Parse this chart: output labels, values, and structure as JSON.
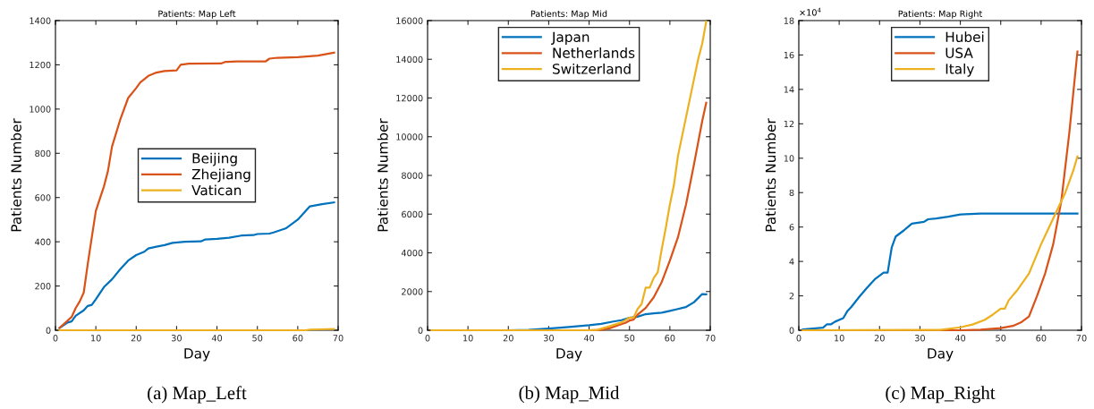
{
  "chart_data": [
    {
      "type": "line",
      "title": "Patients: Map Left",
      "xlabel": "Day",
      "ylabel": "Patients Number",
      "annotations": [
        "(a) Map_Left"
      ],
      "xlim": [
        0,
        70
      ],
      "xticks": [
        0,
        10,
        20,
        30,
        40,
        50,
        60,
        70
      ],
      "ylim": [
        0,
        1400
      ],
      "yticks": [
        0,
        200,
        400,
        600,
        800,
        1000,
        1200,
        1400
      ],
      "legend": "center",
      "grid": false,
      "series": [
        {
          "name": "Beijing",
          "color": "#0072bd",
          "x": [
            1,
            3,
            4,
            5,
            7,
            8,
            9,
            10,
            12,
            14,
            16,
            18,
            20,
            22,
            23,
            25,
            27,
            29,
            32,
            36,
            37,
            40,
            43,
            46,
            49,
            50,
            53,
            54,
            57,
            60,
            63,
            66,
            69
          ],
          "values": [
            10,
            35,
            40,
            65,
            90,
            110,
            115,
            140,
            195,
            230,
            275,
            315,
            340,
            355,
            370,
            378,
            385,
            395,
            400,
            402,
            410,
            413,
            418,
            428,
            430,
            435,
            437,
            442,
            460,
            500,
            560,
            570,
            578
          ]
        },
        {
          "name": "Zhejiang",
          "color": "#d95319",
          "x": [
            1,
            4,
            5,
            6,
            7,
            8,
            9,
            10,
            12,
            13,
            14,
            16,
            18,
            20,
            21,
            23,
            25,
            27,
            30,
            31,
            33,
            41,
            42,
            45,
            52,
            53,
            55,
            60,
            65,
            69
          ],
          "values": [
            10,
            60,
            100,
            130,
            170,
            300,
            420,
            540,
            650,
            720,
            830,
            950,
            1050,
            1095,
            1120,
            1150,
            1165,
            1172,
            1175,
            1200,
            1205,
            1206,
            1213,
            1215,
            1215,
            1228,
            1232,
            1235,
            1242,
            1255
          ]
        },
        {
          "name": "Vatican",
          "color": "#edb120",
          "x": [
            1,
            45,
            62,
            63,
            69
          ],
          "values": [
            0,
            0,
            0,
            3,
            6
          ]
        }
      ]
    },
    {
      "type": "line",
      "title": "Patients: Map Mid",
      "xlabel": "Day",
      "ylabel": "Patients Number",
      "annotations": [
        "(b) Map_Mid"
      ],
      "xlim": [
        0,
        70
      ],
      "xticks": [
        0,
        10,
        20,
        30,
        40,
        50,
        60,
        70
      ],
      "ylim": [
        0,
        16000
      ],
      "yticks": [
        0,
        2000,
        4000,
        6000,
        8000,
        10000,
        12000,
        14000,
        16000
      ],
      "legend": "upper center",
      "grid": false,
      "series": [
        {
          "name": "Japan",
          "color": "#0072bd",
          "x": [
            1,
            20,
            25,
            30,
            35,
            40,
            43,
            46,
            48,
            50,
            52,
            54,
            56,
            58,
            60,
            62,
            64,
            66,
            68,
            69
          ],
          "values": [
            0,
            0,
            20,
            90,
            170,
            260,
            330,
            450,
            520,
            640,
            700,
            830,
            870,
            910,
            1000,
            1100,
            1200,
            1450,
            1870,
            1860
          ]
        },
        {
          "name": "Netherlands",
          "color": "#d95319",
          "x": [
            1,
            40,
            43,
            45,
            47,
            49,
            50,
            51,
            52,
            54,
            56,
            58,
            60,
            62,
            64,
            66,
            68,
            69
          ],
          "values": [
            0,
            0,
            20,
            100,
            250,
            380,
            500,
            550,
            800,
            1150,
            1700,
            2500,
            3600,
            4800,
            6500,
            8600,
            10800,
            11750
          ]
        },
        {
          "name": "Switzerland",
          "color": "#edb120",
          "x": [
            1,
            40,
            42,
            45,
            48,
            50,
            51,
            52,
            53,
            54,
            55,
            56,
            57,
            58,
            59,
            60,
            61,
            62,
            64,
            66,
            67,
            68,
            69
          ],
          "values": [
            0,
            0,
            20,
            200,
            400,
            650,
            650,
            1100,
            1350,
            2200,
            2200,
            2700,
            3000,
            4200,
            5300,
            6500,
            7500,
            9000,
            11000,
            13000,
            14000,
            14800,
            15950
          ]
        }
      ]
    },
    {
      "type": "line",
      "title": "Patients: Map Right",
      "xlabel": "Day",
      "ylabel": "Patients Number",
      "annotations": [
        "(c) Map_Right",
        "×10$^{4}$"
      ],
      "xlim": [
        0,
        70
      ],
      "xticks": [
        0,
        10,
        20,
        30,
        40,
        50,
        60,
        70
      ],
      "ylim": [
        0,
        18
      ],
      "yticks": [
        0,
        2,
        4,
        6,
        8,
        10,
        12,
        14,
        16,
        18
      ],
      "legend": "upper center",
      "grid": false,
      "series": [
        {
          "name": "Hubei",
          "color": "#0072bd",
          "x": [
            1,
            6,
            7,
            8,
            9,
            11,
            12,
            13,
            15,
            17,
            19,
            21,
            22,
            23,
            24,
            26,
            28,
            31,
            32,
            34,
            37,
            40,
            45,
            69
          ],
          "values": [
            0.05,
            0.15,
            0.35,
            0.35,
            0.5,
            0.7,
            1.1,
            1.35,
            1.95,
            2.5,
            3.0,
            3.35,
            3.35,
            4.8,
            5.45,
            5.8,
            6.2,
            6.3,
            6.45,
            6.5,
            6.6,
            6.73,
            6.78,
            6.78
          ]
        },
        {
          "name": "USA",
          "color": "#d95319",
          "x": [
            1,
            40,
            45,
            50,
            53,
            55,
            57,
            59,
            61,
            63,
            65,
            67,
            69
          ],
          "values": [
            0,
            0,
            0.03,
            0.12,
            0.25,
            0.45,
            0.8,
            2.0,
            3.3,
            5.0,
            7.5,
            11.5,
            16.2
          ]
        },
        {
          "name": "Italy",
          "color": "#edb120",
          "x": [
            1,
            35,
            40,
            43,
            46,
            48,
            50,
            51,
            52,
            54,
            57,
            60,
            62,
            64,
            66,
            68,
            69
          ],
          "values": [
            0,
            0.02,
            0.17,
            0.33,
            0.6,
            0.9,
            1.25,
            1.25,
            1.75,
            2.3,
            3.3,
            5.0,
            6.0,
            7.0,
            8.0,
            9.3,
            10.1
          ]
        }
      ]
    }
  ]
}
